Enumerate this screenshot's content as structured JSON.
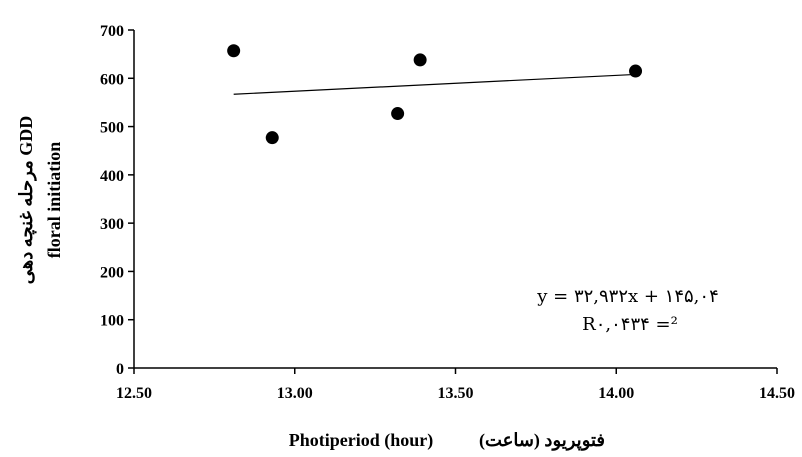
{
  "chart_data": {
    "type": "scatter",
    "x": [
      12.81,
      12.93,
      13.32,
      13.39,
      14.06
    ],
    "y": [
      657,
      477,
      527,
      638,
      615
    ],
    "xlim": [
      12.5,
      14.5
    ],
    "ylim": [
      0,
      700
    ],
    "xticks": [
      "12.50",
      "13.00",
      "13.50",
      "14.00",
      "14.50"
    ],
    "yticks": [
      "0",
      "100",
      "200",
      "300",
      "400",
      "500",
      "600",
      "700"
    ],
    "trendline": {
      "type": "linear",
      "x": [
        12.81,
        14.06
      ],
      "y": [
        567,
        608
      ]
    },
    "xlabel": "Photiperiod (hour)",
    "xlabel_fa": "فتوپریود (ساعت)",
    "ylabel_line1": "مرحله غنچه دهی GDD",
    "ylabel_line2": "floral initiation",
    "equation": "y = ۳۲,۹۳۲x + ۱۴۵,۰۴",
    "r2": "R۰,۰۴۳۴ =²",
    "grid": false,
    "legend": "none"
  }
}
